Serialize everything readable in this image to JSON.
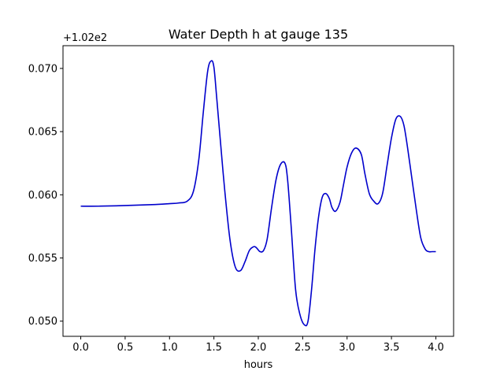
{
  "chart_data": {
    "type": "line",
    "title": "Water Depth h at gauge 135",
    "xlabel": "hours",
    "ylabel": "",
    "y_offset_label": "+1.02e2",
    "xlim": [
      -0.2,
      4.2
    ],
    "ylim": [
      0.0488,
      0.0718
    ],
    "xticks": [
      0.0,
      0.5,
      1.0,
      1.5,
      2.0,
      2.5,
      3.0,
      3.5,
      4.0
    ],
    "xtick_labels": [
      "0.0",
      "0.5",
      "1.0",
      "1.5",
      "2.0",
      "2.5",
      "3.0",
      "3.5",
      "4.0"
    ],
    "yticks": [
      0.05,
      0.055,
      0.06,
      0.065,
      0.07
    ],
    "ytick_labels": [
      "0.050",
      "0.055",
      "0.060",
      "0.065",
      "0.070"
    ],
    "grid": false,
    "series": [
      {
        "color": "#0000cc",
        "x": [
          0.0,
          0.2,
          0.5,
          0.8,
          1.0,
          1.1,
          1.2,
          1.27,
          1.33,
          1.38,
          1.43,
          1.47,
          1.5,
          1.53,
          1.57,
          1.62,
          1.68,
          1.74,
          1.8,
          1.85,
          1.9,
          1.95,
          1.98,
          2.02,
          2.06,
          2.1,
          2.15,
          2.2,
          2.25,
          2.3,
          2.33,
          2.37,
          2.42,
          2.47,
          2.52,
          2.56,
          2.6,
          2.64,
          2.68,
          2.72,
          2.76,
          2.8,
          2.83,
          2.87,
          2.92,
          2.96,
          3.0,
          3.05,
          3.1,
          3.16,
          3.2,
          3.25,
          3.3,
          3.35,
          3.4,
          3.45,
          3.5,
          3.55,
          3.6,
          3.64,
          3.68,
          3.73,
          3.78,
          3.83,
          3.88,
          3.92,
          3.96,
          4.0
        ],
        "y": [
          0.0591,
          0.0591,
          0.05915,
          0.05922,
          0.0593,
          0.05935,
          0.0595,
          0.0603,
          0.0628,
          0.0665,
          0.0698,
          0.0706,
          0.0701,
          0.0678,
          0.0645,
          0.0605,
          0.0565,
          0.0543,
          0.054,
          0.0547,
          0.0556,
          0.0559,
          0.0558,
          0.0555,
          0.0556,
          0.0565,
          0.059,
          0.0612,
          0.0624,
          0.0625,
          0.0612,
          0.0575,
          0.0525,
          0.0505,
          0.0497,
          0.05,
          0.0525,
          0.0558,
          0.0583,
          0.0598,
          0.0601,
          0.0597,
          0.059,
          0.0587,
          0.0594,
          0.0608,
          0.0622,
          0.0633,
          0.0637,
          0.0632,
          0.0617,
          0.0601,
          0.0595,
          0.0593,
          0.0601,
          0.0623,
          0.0645,
          0.066,
          0.0662,
          0.0655,
          0.0638,
          0.0613,
          0.0588,
          0.0566,
          0.0557,
          0.0555,
          0.0555,
          0.0555
        ]
      }
    ]
  }
}
